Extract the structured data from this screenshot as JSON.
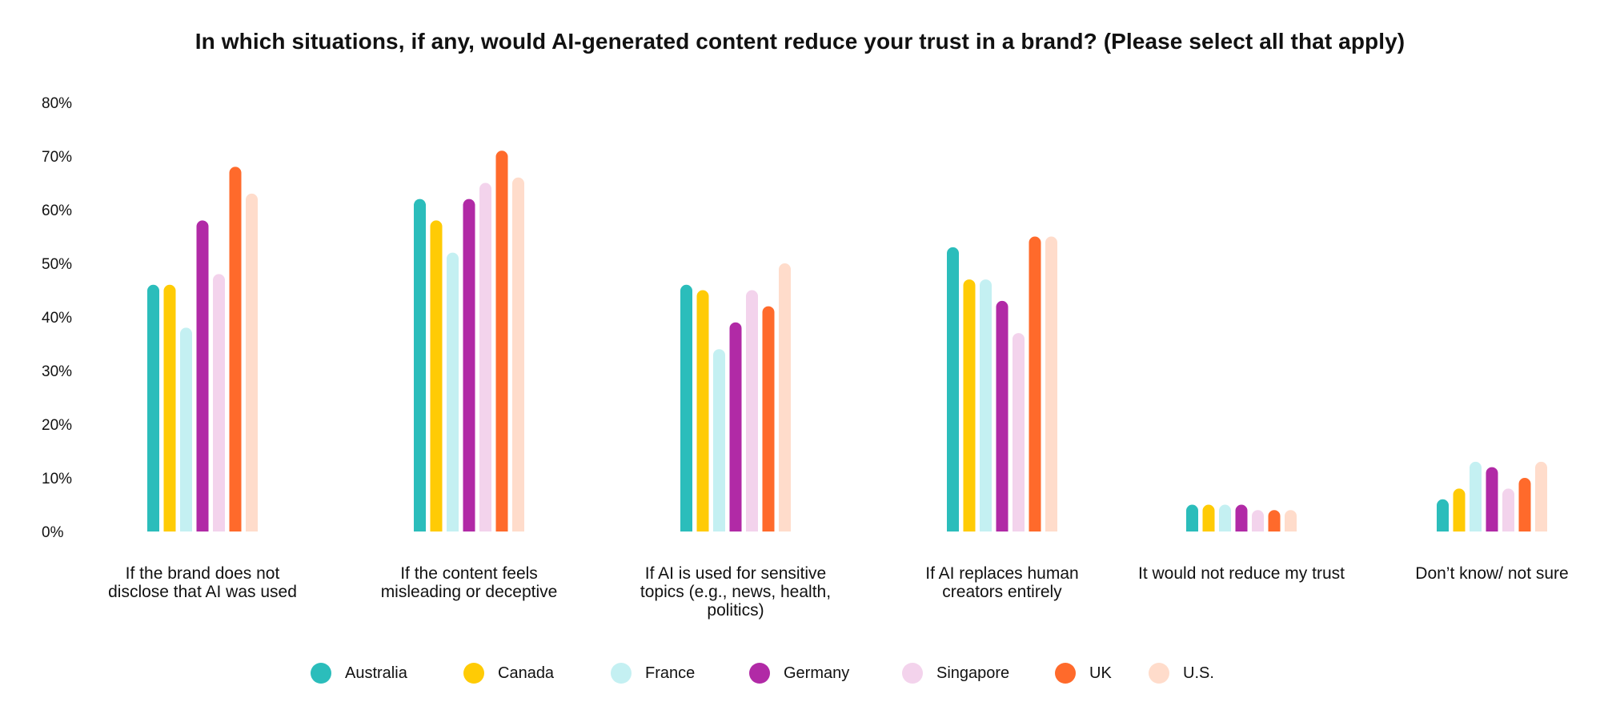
{
  "chart_data": {
    "type": "bar",
    "title": "In which situations, if any, would AI-generated content reduce your trust in a brand? (Please select all that apply)",
    "xlabel": "",
    "ylabel": "",
    "ylim": [
      0,
      80
    ],
    "yticks": [
      0,
      10,
      20,
      30,
      40,
      50,
      60,
      70,
      80
    ],
    "ytick_labels": [
      "0%",
      "10%",
      "20%",
      "30%",
      "40%",
      "50%",
      "60%",
      "70%",
      "80%"
    ],
    "grid": false,
    "legend_position": "bottom",
    "categories": [
      "If the brand does not disclose that AI was used",
      "If the content feels misleading or deceptive",
      "If AI is used for sensitive topics (e.g., news, health, politics)",
      "If AI replaces human creators entirely",
      "It would not reduce my trust",
      "Don’t know/ not sure"
    ],
    "series": [
      {
        "name": "Australia",
        "color": "#2BBDBB",
        "values": [
          46,
          62,
          46,
          53,
          5,
          6
        ]
      },
      {
        "name": "Canada",
        "color": "#FFCB05",
        "values": [
          46,
          58,
          45,
          47,
          5,
          8
        ]
      },
      {
        "name": "France",
        "color": "#C4F0F2",
        "values": [
          38,
          52,
          34,
          47,
          5,
          13
        ]
      },
      {
        "name": "Germany",
        "color": "#B12AA6",
        "values": [
          58,
          62,
          39,
          43,
          5,
          12
        ]
      },
      {
        "name": "Singapore",
        "color": "#F3D3EC",
        "values": [
          48,
          65,
          45,
          37,
          4,
          8
        ]
      },
      {
        "name": "UK",
        "color": "#FF6A2B",
        "values": [
          68,
          71,
          42,
          55,
          4,
          10
        ]
      },
      {
        "name": "U.S.",
        "color": "#FFDCCB",
        "values": [
          63,
          66,
          50,
          55,
          4,
          13
        ]
      }
    ]
  }
}
